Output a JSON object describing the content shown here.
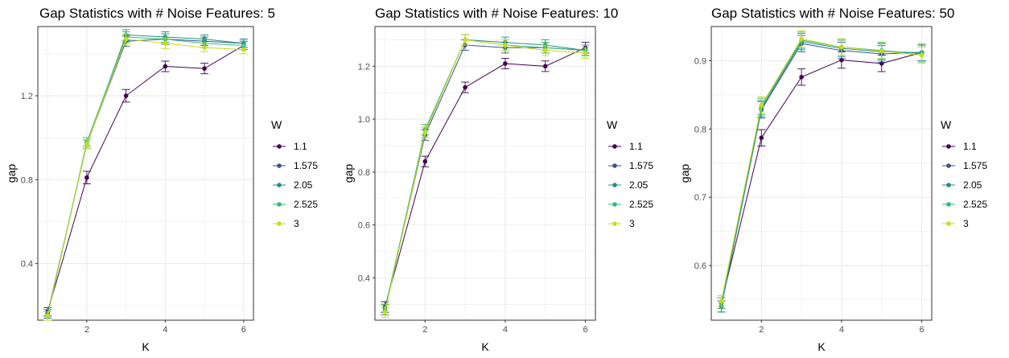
{
  "colors": {
    "series": [
      "#440154",
      "#3b528b",
      "#21908c",
      "#35b779",
      "#c8dc16"
    ],
    "grid": "#ebebeb",
    "panel_border": "#333333"
  },
  "chart_data": [
    {
      "type": "line",
      "title": "Gap Statistics with # Noise Features: 5",
      "xlabel": "K",
      "ylabel": "gap",
      "legend_title": "W",
      "legend_position": "right",
      "grid": true,
      "x": [
        1,
        2,
        3,
        4,
        5,
        6
      ],
      "xlim": [
        0.75,
        6.25
      ],
      "xticks": [
        2,
        4,
        6
      ],
      "ylim": [
        0.13,
        1.53
      ],
      "yticks": [
        0.4,
        0.8,
        1.2
      ],
      "series": [
        {
          "name": "1.1",
          "values": [
            0.17,
            0.81,
            1.2,
            1.34,
            1.33,
            1.44
          ],
          "err": [
            0.02,
            0.03,
            0.03,
            0.025,
            0.025,
            0.02
          ]
        },
        {
          "name": "1.575",
          "values": [
            0.16,
            0.97,
            1.46,
            1.47,
            1.46,
            1.45
          ],
          "err": [
            0.02,
            0.02,
            0.025,
            0.025,
            0.02,
            0.02
          ]
        },
        {
          "name": "2.05",
          "values": [
            0.16,
            0.97,
            1.49,
            1.48,
            1.47,
            1.45
          ],
          "err": [
            0.02,
            0.02,
            0.025,
            0.025,
            0.02,
            0.02
          ]
        },
        {
          "name": "2.525",
          "values": [
            0.15,
            0.98,
            1.48,
            1.47,
            1.45,
            1.44
          ],
          "err": [
            0.02,
            0.02,
            0.025,
            0.025,
            0.02,
            0.02
          ]
        },
        {
          "name": "3",
          "values": [
            0.15,
            0.97,
            1.47,
            1.45,
            1.43,
            1.42
          ],
          "err": [
            0.02,
            0.02,
            0.025,
            0.025,
            0.02,
            0.02
          ]
        }
      ]
    },
    {
      "type": "line",
      "title": "Gap Statistics with # Noise Features: 10",
      "xlabel": "K",
      "ylabel": "gap",
      "legend_title": "W",
      "legend_position": "right",
      "grid": true,
      "x": [
        1,
        2,
        3,
        4,
        5,
        6
      ],
      "xlim": [
        0.75,
        6.25
      ],
      "xticks": [
        2,
        4,
        6
      ],
      "ylim": [
        0.24,
        1.35
      ],
      "yticks": [
        0.4,
        0.6,
        0.8,
        1.0,
        1.2
      ],
      "series": [
        {
          "name": "1.1",
          "values": [
            0.29,
            0.84,
            1.12,
            1.21,
            1.2,
            1.27
          ],
          "err": [
            0.02,
            0.02,
            0.02,
            0.02,
            0.02,
            0.02
          ]
        },
        {
          "name": "1.575",
          "values": [
            0.28,
            0.94,
            1.28,
            1.27,
            1.27,
            1.26
          ],
          "err": [
            0.02,
            0.02,
            0.02,
            0.02,
            0.02,
            0.02
          ]
        },
        {
          "name": "2.05",
          "values": [
            0.28,
            0.95,
            1.3,
            1.29,
            1.28,
            1.26
          ],
          "err": [
            0.02,
            0.02,
            0.02,
            0.02,
            0.02,
            0.02
          ]
        },
        {
          "name": "2.525",
          "values": [
            0.28,
            0.96,
            1.3,
            1.28,
            1.27,
            1.26
          ],
          "err": [
            0.02,
            0.02,
            0.02,
            0.02,
            0.02,
            0.02
          ]
        },
        {
          "name": "3",
          "values": [
            0.27,
            0.95,
            1.3,
            1.28,
            1.26,
            1.25
          ],
          "err": [
            0.02,
            0.02,
            0.02,
            0.02,
            0.02,
            0.02
          ]
        }
      ]
    },
    {
      "type": "line",
      "title": "Gap Statistics with # Noise Features: 50",
      "xlabel": "K",
      "ylabel": "gap",
      "legend_title": "W",
      "legend_position": "right",
      "grid": true,
      "x": [
        1,
        2,
        3,
        4,
        5,
        6
      ],
      "xlim": [
        0.75,
        6.25
      ],
      "xticks": [
        2,
        4,
        6
      ],
      "ylim": [
        0.52,
        0.95
      ],
      "yticks": [
        0.6,
        0.7,
        0.8,
        0.9
      ],
      "series": [
        {
          "name": "1.1",
          "values": [
            0.545,
            0.787,
            0.876,
            0.901,
            0.896,
            0.912
          ],
          "err": [
            0.008,
            0.012,
            0.012,
            0.012,
            0.012,
            0.012
          ]
        },
        {
          "name": "1.575",
          "values": [
            0.54,
            0.828,
            0.925,
            0.915,
            0.91,
            0.912
          ],
          "err": [
            0.008,
            0.012,
            0.012,
            0.012,
            0.012,
            0.012
          ]
        },
        {
          "name": "2.05",
          "values": [
            0.54,
            0.83,
            0.928,
            0.918,
            0.913,
            0.912
          ],
          "err": [
            0.008,
            0.012,
            0.012,
            0.012,
            0.012,
            0.012
          ]
        },
        {
          "name": "2.525",
          "values": [
            0.545,
            0.833,
            0.93,
            0.92,
            0.915,
            0.91
          ],
          "err": [
            0.008,
            0.012,
            0.012,
            0.012,
            0.012,
            0.012
          ]
        },
        {
          "name": "3",
          "values": [
            0.548,
            0.835,
            0.932,
            0.92,
            0.914,
            0.908
          ],
          "err": [
            0.008,
            0.012,
            0.012,
            0.012,
            0.012,
            0.012
          ]
        }
      ]
    }
  ]
}
